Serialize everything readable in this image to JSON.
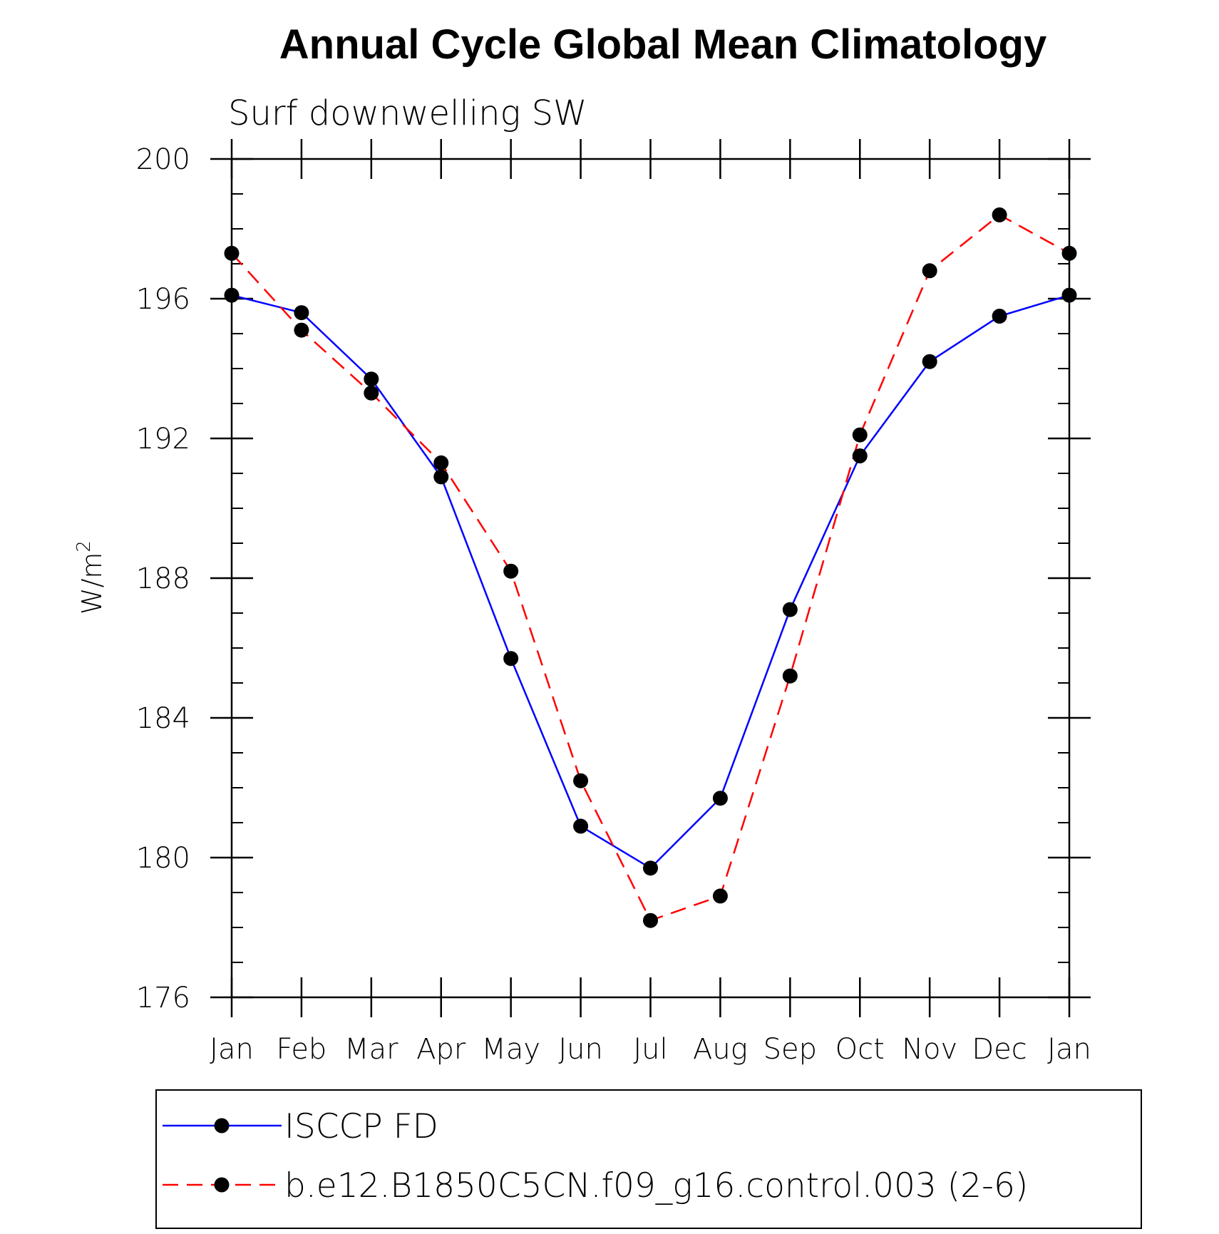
{
  "chart_data": {
    "type": "line",
    "title": "Annual Cycle Global Mean Climatology",
    "subtitle": "Surf downwelling SW",
    "ylabel": "W/m",
    "ylabel_superscript": "2",
    "xlabel": "",
    "categories": [
      "Jan",
      "Feb",
      "Mar",
      "Apr",
      "May",
      "Jun",
      "Jul",
      "Aug",
      "Sep",
      "Oct",
      "Nov",
      "Dec",
      "Jan"
    ],
    "ylim": [
      176,
      200
    ],
    "yticks": [
      176,
      180,
      184,
      188,
      192,
      196,
      200
    ],
    "yticks_minor_step": 1,
    "grid": false,
    "legend_position": "bottom",
    "series": [
      {
        "name": "ISCCP FD",
        "color": "#0000ff",
        "line_style": "solid",
        "marker": "filled-circle",
        "values": [
          196.1,
          195.6,
          193.7,
          190.9,
          185.7,
          180.9,
          179.7,
          181.7,
          187.1,
          191.5,
          194.2,
          195.5,
          196.1
        ]
      },
      {
        "name": "b.e12.B1850C5CN.f09_g16.control.003 (2-6)",
        "color": "#ff0000",
        "line_style": "dashed",
        "marker": "filled-circle",
        "values": [
          197.3,
          195.1,
          193.3,
          191.3,
          188.2,
          182.2,
          178.2,
          178.9,
          185.2,
          192.1,
          196.8,
          198.4,
          197.3
        ]
      }
    ]
  }
}
